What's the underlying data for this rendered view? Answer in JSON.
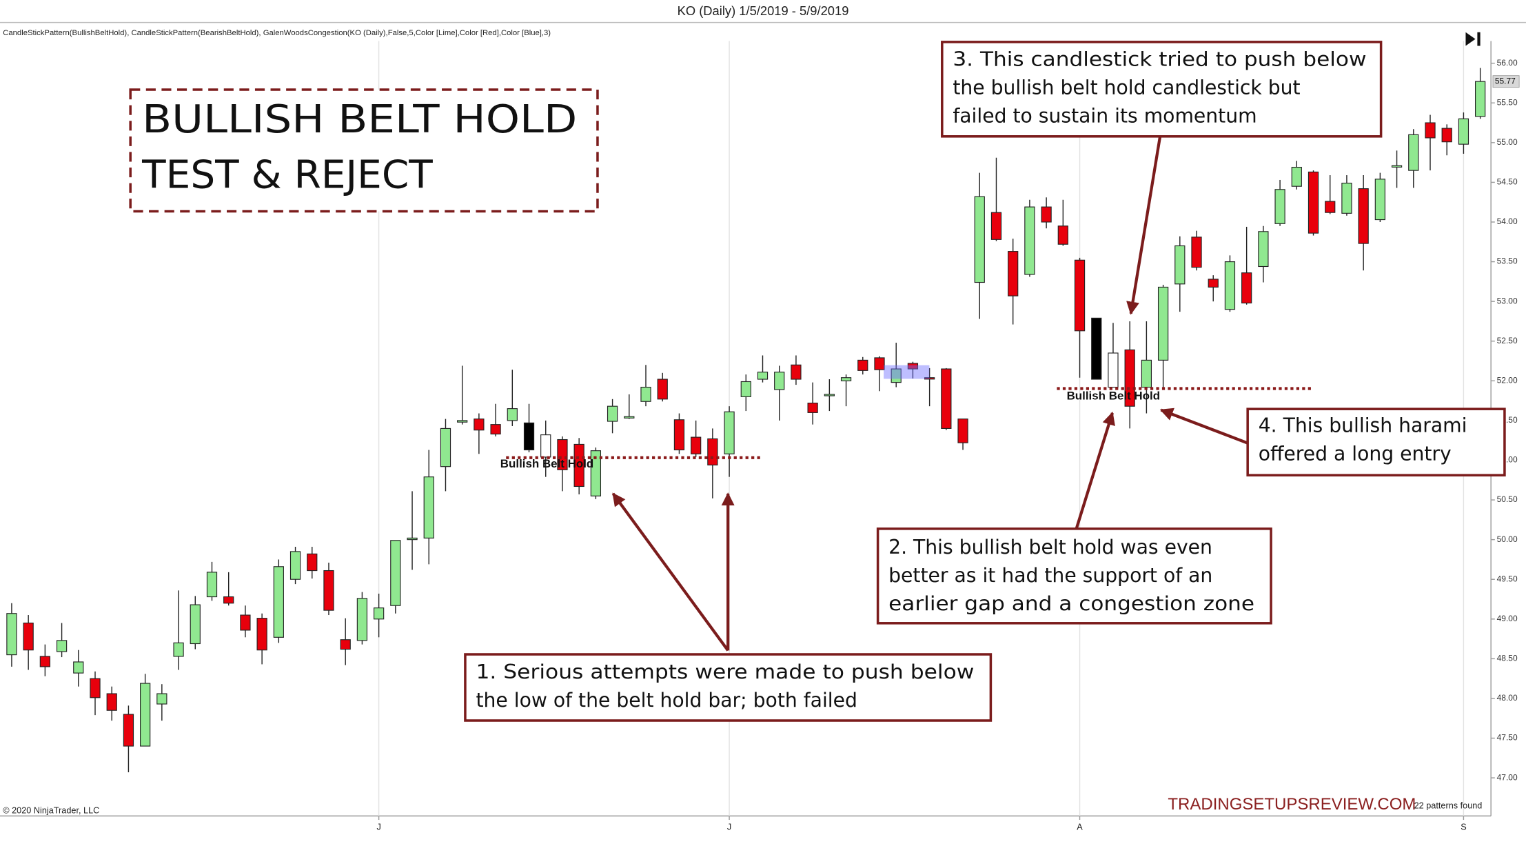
{
  "chart_data": {
    "type": "candlestick",
    "title": "KO (Daily)  1/5/2019 - 5/9/2019",
    "indicator_text": "CandleStickPattern(BullishBeltHold), CandleStickPattern(BearishBeltHold), GalenWoodsCongestion(KO (Daily),False,5,Color [Lime],Color [Red],Color [Blue],3)",
    "heading": [
      "BULLISH BELT HOLD",
      "TEST & REJECT"
    ],
    "annotations": [
      {
        "lines": [
          "1. Serious attempts were made to push below",
          "the low of the belt hold bar; both failed"
        ]
      },
      {
        "lines": [
          "2. This bullish belt hold was even",
          "better as it had the support of an",
          "earlier gap and a congestion zone"
        ]
      },
      {
        "lines": [
          "3. This candlestick tried to push below",
          "the bullish belt hold candlestick but",
          "failed to sustain its momentum"
        ]
      },
      {
        "lines": [
          "4. This bullish harami",
          "offered a long entry"
        ]
      }
    ],
    "pattern_labels": [
      "Bullish Belt Hold",
      "Bullish Belt Hold"
    ],
    "copyright": "© 2020 NinjaTrader, LLC",
    "watermark": "TRADINGSETUPSREVIEW.COM",
    "patterns_found": "22 patterns found",
    "last_price": 55.77,
    "categories": [
      null,
      null,
      null,
      null,
      null,
      null,
      null,
      null,
      null,
      null,
      null,
      null,
      null,
      null,
      null,
      null,
      null,
      null,
      null,
      null,
      null,
      null,
      "J",
      null,
      null,
      null,
      null,
      null,
      null,
      null,
      null,
      null,
      null,
      null,
      null,
      null,
      null,
      null,
      null,
      null,
      null,
      null,
      null,
      "J",
      null,
      null,
      null,
      null,
      null,
      null,
      null,
      null,
      null,
      null,
      null,
      null,
      null,
      null,
      null,
      null,
      null,
      null,
      null,
      null,
      "A",
      null,
      null,
      null,
      null,
      null,
      null,
      null,
      null,
      null,
      null,
      null,
      null,
      null,
      null,
      null,
      null,
      null,
      null,
      null,
      null,
      null,
      null,
      "S",
      null
    ],
    "open": [
      48.55,
      48.95,
      48.53,
      48.59,
      48.32,
      48.25,
      48.06,
      47.8,
      47.4,
      47.93,
      48.53,
      48.69,
      49.28,
      49.28,
      49.05,
      49.01,
      48.77,
      49.5,
      49.82,
      49.61,
      48.74,
      48.73,
      49.0,
      49.17,
      50.0,
      50.02,
      50.92,
      51.48,
      51.52,
      51.45,
      51.5,
      51.47,
      51.04,
      51.26,
      51.2,
      50.55,
      51.49,
      51.54,
      51.74,
      52.02,
      51.51,
      51.29,
      51.27,
      51.08,
      51.8,
      52.02,
      51.89,
      52.2,
      51.72,
      51.82,
      52.0,
      52.26,
      52.29,
      51.98,
      52.22,
      52.04,
      52.15,
      51.52,
      53.24,
      54.12,
      53.63,
      53.34,
      54.19,
      53.95,
      53.52,
      52.79,
      51.92,
      52.39,
      51.92,
      52.26,
      53.22,
      53.81,
      53.28,
      52.9,
      53.36,
      53.44,
      53.98,
      54.45,
      54.63,
      54.26,
      54.11,
      54.42,
      54.03,
      54.7,
      54.65,
      55.25,
      55.18,
      54.98,
      55.33
    ],
    "high": [
      49.2,
      49.05,
      48.68,
      48.95,
      48.61,
      48.34,
      48.15,
      47.91,
      48.31,
      48.18,
      49.36,
      49.29,
      49.72,
      49.59,
      49.17,
      49.07,
      49.75,
      49.91,
      49.91,
      49.71,
      49.01,
      49.34,
      49.32,
      49.99,
      50.61,
      51.13,
      51.52,
      52.19,
      51.59,
      51.71,
      52.14,
      51.71,
      51.5,
      51.3,
      51.28,
      51.16,
      51.77,
      51.83,
      52.2,
      52.1,
      51.59,
      51.5,
      51.4,
      51.68,
      52.08,
      52.32,
      52.19,
      52.32,
      51.98,
      52.02,
      52.08,
      52.3,
      52.31,
      52.48,
      52.24,
      52.16,
      52.16,
      51.52,
      54.62,
      54.81,
      53.79,
      54.28,
      54.31,
      54.28,
      53.55,
      52.79,
      52.73,
      52.75,
      52.75,
      53.21,
      53.82,
      53.89,
      53.33,
      53.58,
      53.94,
      53.95,
      54.53,
      54.77,
      54.65,
      54.59,
      54.59,
      54.59,
      54.62,
      54.9,
      55.17,
      55.35,
      55.23,
      55.38,
      55.94
    ],
    "low": [
      48.4,
      48.36,
      48.28,
      48.52,
      48.15,
      47.79,
      47.72,
      47.07,
      47.4,
      47.72,
      48.36,
      48.62,
      49.23,
      49.17,
      48.77,
      48.43,
      48.7,
      49.44,
      49.51,
      49.05,
      48.42,
      48.68,
      48.77,
      49.07,
      49.62,
      49.69,
      50.61,
      51.45,
      51.08,
      51.3,
      51.43,
      51.1,
      50.79,
      50.61,
      50.57,
      50.51,
      51.34,
      51.52,
      51.68,
      51.74,
      51.08,
      51.04,
      50.52,
      50.79,
      51.62,
      51.98,
      51.5,
      51.95,
      51.45,
      51.62,
      51.68,
      52.08,
      51.87,
      51.92,
      52.03,
      51.68,
      51.38,
      51.13,
      52.78,
      53.76,
      52.71,
      53.31,
      53.92,
      53.7,
      52.04,
      52.02,
      51.92,
      51.4,
      51.59,
      51.92,
      52.87,
      53.39,
      53.0,
      52.87,
      52.96,
      53.24,
      53.95,
      54.41,
      53.83,
      54.1,
      54.08,
      53.39,
      54.0,
      54.43,
      54.43,
      54.65,
      54.84,
      54.86,
      55.3
    ],
    "close": [
      49.07,
      48.61,
      48.4,
      48.73,
      48.46,
      48.01,
      47.85,
      47.4,
      48.19,
      48.06,
      48.7,
      49.18,
      49.59,
      49.2,
      48.86,
      48.61,
      49.66,
      49.85,
      49.61,
      49.11,
      48.62,
      49.26,
      49.14,
      49.99,
      50.02,
      50.79,
      51.4,
      51.5,
      51.38,
      51.33,
      51.65,
      51.13,
      51.32,
      50.88,
      50.67,
      51.12,
      51.68,
      51.55,
      51.92,
      51.77,
      51.13,
      51.08,
      50.94,
      51.61,
      51.99,
      52.11,
      52.11,
      52.02,
      51.6,
      51.83,
      52.04,
      52.13,
      52.14,
      52.15,
      52.15,
      52.03,
      51.4,
      51.22,
      54.32,
      53.78,
      53.07,
      54.19,
      54.0,
      53.72,
      52.63,
      52.02,
      52.35,
      51.68,
      52.26,
      53.18,
      53.7,
      53.43,
      53.18,
      53.5,
      52.98,
      53.88,
      54.41,
      54.69,
      53.86,
      54.12,
      54.49,
      53.73,
      54.54,
      54.71,
      55.1,
      55.06,
      55.01,
      55.3,
      55.77
    ],
    "colors": [
      "#90e890",
      "#e8000c",
      "#e8000c",
      "#90e890",
      "#90e890",
      "#e8000c",
      "#e8000c",
      "#e8000c",
      "#90e890",
      "#90e890",
      "#90e890",
      "#90e890",
      "#90e890",
      "#e8000c",
      "#e8000c",
      "#e8000c",
      "#90e890",
      "#90e890",
      "#e8000c",
      "#e8000c",
      "#e8000c",
      "#90e890",
      "#90e890",
      "#90e890",
      "#90e890",
      "#90e890",
      "#90e890",
      "#90e890",
      "#e8000c",
      "#e8000c",
      "#90e890",
      "#000000",
      "#ffffff",
      "#e8000c",
      "#e8000c",
      "#90e890",
      "#90e890",
      "#90e890",
      "#90e890",
      "#e8000c",
      "#e8000c",
      "#e8000c",
      "#e8000c",
      "#90e890",
      "#90e890",
      "#90e890",
      "#90e890",
      "#e8000c",
      "#e8000c",
      "#90e890",
      "#90e890",
      "#e8000c",
      "#e8000c",
      "#90e890",
      "#e8000c",
      "#e8000c",
      "#e8000c",
      "#e8000c",
      "#90e890",
      "#e8000c",
      "#e8000c",
      "#90e890",
      "#e8000c",
      "#e8000c",
      "#e8000c",
      "#000000",
      "#ffffff",
      "#e8000c",
      "#90e890",
      "#90e890",
      "#90e890",
      "#e8000c",
      "#e8000c",
      "#90e890",
      "#e8000c",
      "#90e890",
      "#90e890",
      "#90e890",
      "#e8000c",
      "#e8000c",
      "#90e890",
      "#e8000c",
      "#90e890",
      "#90e890",
      "#90e890",
      "#e8000c",
      "#e8000c",
      "#90e890",
      "#90e890"
    ],
    "ylim": [
      46.52,
      56.28
    ],
    "yticks": [
      {
        "value": 47,
        "label": "47.00"
      },
      {
        "value": 47.5,
        "label": "47.50"
      },
      {
        "value": 48,
        "label": "48.00"
      },
      {
        "value": 48.5,
        "label": "48.50"
      },
      {
        "value": 49,
        "label": "49.00"
      },
      {
        "value": 49.5,
        "label": "49.50"
      },
      {
        "value": 50,
        "label": "50.00"
      },
      {
        "value": 50.5,
        "label": "50.50"
      },
      {
        "value": 51,
        "label": "51.00"
      },
      {
        "value": 51.5,
        "label": "51.50"
      },
      {
        "value": 52,
        "label": "52.00"
      },
      {
        "value": 52.5,
        "label": "52.50"
      },
      {
        "value": 53,
        "label": "53.00"
      },
      {
        "value": 53.5,
        "label": "53.50"
      },
      {
        "value": 54,
        "label": "54.00"
      },
      {
        "value": 54.5,
        "label": "54.50"
      },
      {
        "value": 55,
        "label": "55.00"
      },
      {
        "value": 55.5,
        "label": "55.50"
      },
      {
        "value": 56,
        "label": "56.00"
      }
    ]
  }
}
